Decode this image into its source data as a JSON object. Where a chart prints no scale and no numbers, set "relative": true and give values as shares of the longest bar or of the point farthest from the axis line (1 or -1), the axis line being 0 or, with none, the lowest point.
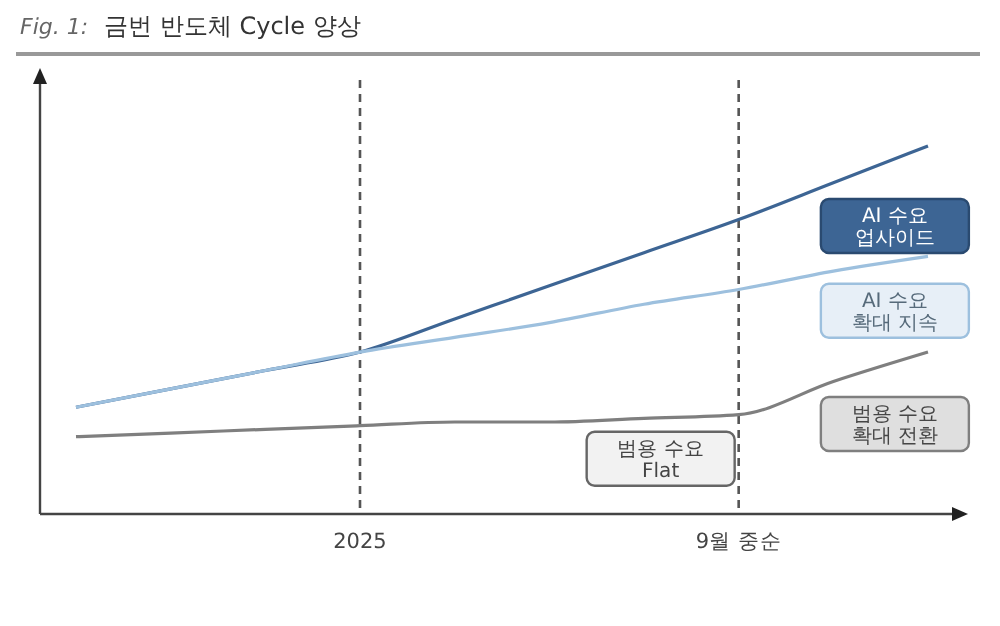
{
  "chart_data": {
    "type": "line",
    "title": "Fig. 1:  금번 반도체 Cycle 양상",
    "relative": true,
    "legend": false,
    "marker": "none",
    "line_style": "solid",
    "categories": [
      null,
      null,
      null,
      "2025",
      null,
      null,
      null,
      "9월 중순",
      null,
      null
    ],
    "series": [
      {
        "name": "AI 수요\n업사이드",
        "color": "#3d6594",
        "values": [
          0.29,
          0.34,
          0.39,
          0.44,
          0.53,
          0.62,
          0.71,
          0.8,
          0.9,
          1.0
        ]
      },
      {
        "name": "AI 수요\n확대 지속",
        "color": "#9dc0de",
        "values": [
          0.29,
          0.34,
          0.39,
          0.44,
          0.48,
          0.52,
          0.57,
          0.61,
          0.66,
          0.7
        ]
      },
      {
        "name": "범용 수요\n확대 전환",
        "color": "#7f7f7f",
        "values": [
          0.21,
          0.22,
          0.23,
          0.24,
          0.25,
          0.25,
          0.26,
          0.27,
          0.36,
          0.44
        ]
      }
    ],
    "ref_lines": [
      {
        "axis": "x",
        "value": "2025",
        "color": "#555555",
        "line_style": "dashed"
      },
      {
        "axis": "x",
        "value": "9월 중순",
        "color": "#555555",
        "line_style": "dashed"
      }
    ],
    "annotations": [
      "범용 수요\nFlat"
    ]
  }
}
